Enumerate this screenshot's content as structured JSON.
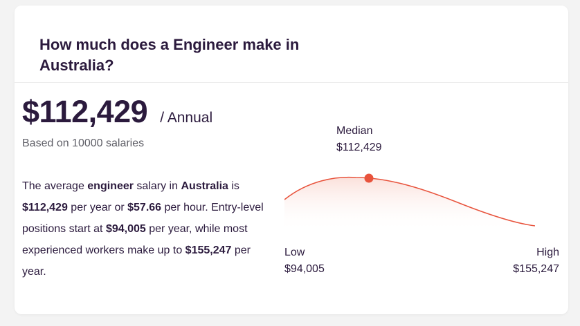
{
  "card": {
    "title": "How much does a Engineer make in Australia?",
    "salary": {
      "amount": "$112,429",
      "period": "/ Annual",
      "based_on": "Based on 10000 salaries"
    },
    "description": {
      "t1": "The average ",
      "job": "engineer",
      "t2": " salary in ",
      "location": "Australia",
      "t3": " is ",
      "yearly": "$112,429",
      "t4": " per year or ",
      "hourly": "$57.66",
      "t5": " per hour. Entry-level positions start at ",
      "entry": "$94,005",
      "t6": " per year, while most experienced workers make up to ",
      "experienced": "$155,247",
      "t7": " per year."
    },
    "distribution": {
      "median_label": "Median",
      "median_value": "$112,429",
      "low_label": "Low",
      "low_value": "$94,005",
      "high_label": "High",
      "high_value": "$155,247",
      "accent_color": "#e8533c"
    }
  }
}
